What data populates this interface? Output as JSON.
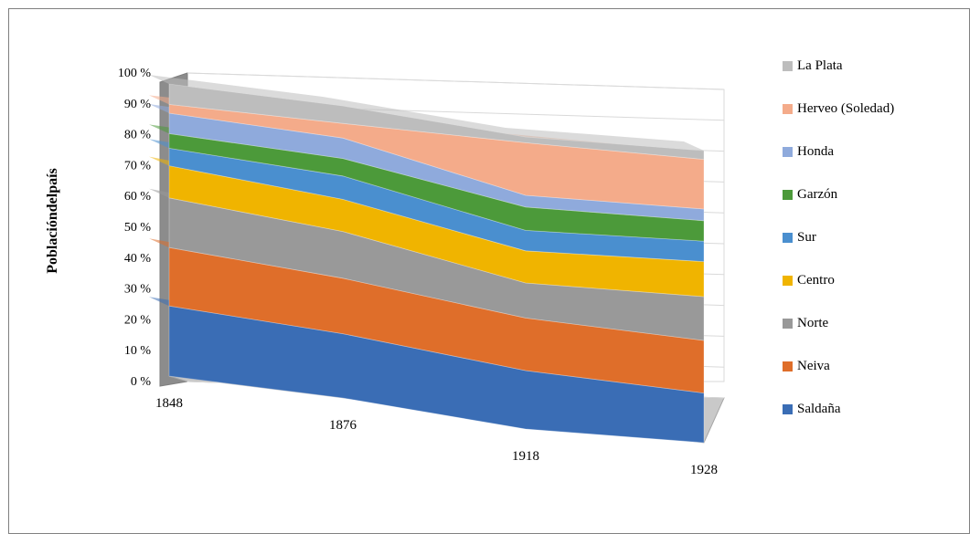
{
  "chart_data": {
    "type": "area",
    "stacked": "100%",
    "three_d": true,
    "categories": [
      "1848",
      "1876",
      "1918",
      "1928"
    ],
    "ylabel": "Poblacióndelpaís",
    "yticks": [
      "0 %",
      "10 %",
      "20 %",
      "30 %",
      "40 %",
      "50 %",
      "60 %",
      "70 %",
      "80 %",
      "90 %",
      "100 %"
    ],
    "ylim": [
      0,
      100
    ],
    "legend_position": "right",
    "series": [
      {
        "name": "Saldaña",
        "color": "#3a6db5",
        "values": [
          24,
          22,
          20,
          17
        ]
      },
      {
        "name": "Neiva",
        "color": "#df6e2a",
        "values": [
          20,
          19,
          18,
          18
        ]
      },
      {
        "name": "Norte",
        "color": "#999999",
        "values": [
          17,
          16,
          12,
          15
        ]
      },
      {
        "name": "Centro",
        "color": "#f0b400",
        "values": [
          11,
          11,
          11,
          12
        ]
      },
      {
        "name": "Sur",
        "color": "#4a8fcf",
        "values": [
          6,
          8,
          7,
          7
        ]
      },
      {
        "name": "Garzón",
        "color": "#4c9a3a",
        "values": [
          5,
          6,
          8,
          7
        ]
      },
      {
        "name": "Honda",
        "color": "#8faadc",
        "values": [
          7,
          7,
          4,
          4
        ]
      },
      {
        "name": "Herveo (Soledad)",
        "color": "#f4ab8a",
        "values": [
          3,
          5,
          18,
          17
        ]
      },
      {
        "name": "La Plata",
        "color": "#bdbdbd",
        "values": [
          7,
          6,
          2,
          3
        ]
      }
    ]
  }
}
